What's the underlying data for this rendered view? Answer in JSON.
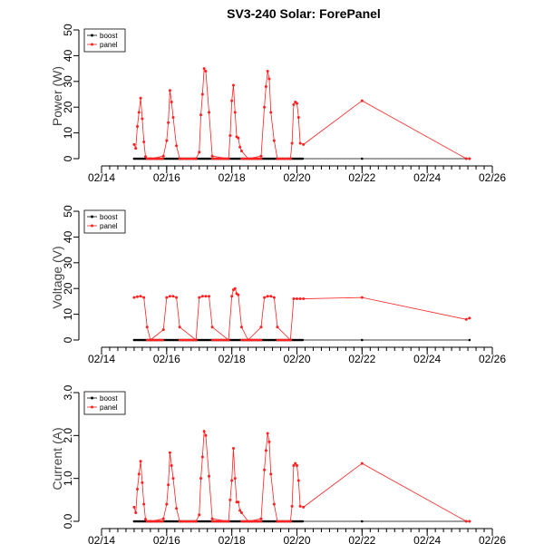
{
  "title": "SV3-240 Solar: ForePanel",
  "colors": {
    "boost": "#000000",
    "panel": "#ff2020"
  },
  "chart_data": [
    {
      "type": "line",
      "ylabel": "Power (W)",
      "xlabel": "",
      "ylim": [
        0,
        50
      ],
      "yticks": [
        "0",
        "10",
        "20",
        "30",
        "40",
        "50"
      ],
      "ytick_values": [
        0,
        10,
        20,
        30,
        40,
        50
      ],
      "xlim_days": [
        14,
        26
      ],
      "xtick_labels": [
        "02/14",
        "02/16",
        "02/18",
        "02/20",
        "02/22",
        "02/24",
        "02/26"
      ],
      "xtick_days": [
        14,
        16,
        18,
        20,
        22,
        24,
        26
      ],
      "legend": [
        "boost",
        "panel"
      ],
      "legend_position": "top-left",
      "series": [
        {
          "name": "boost",
          "x_days": [
            15.0,
            20.2,
            22.0,
            25.3
          ],
          "y": [
            0,
            0,
            0,
            0
          ],
          "dense": true
        },
        {
          "name": "panel",
          "x_days": [
            15.0,
            15.05,
            15.1,
            15.15,
            15.2,
            15.25,
            15.3,
            15.35,
            15.4,
            15.5,
            15.9,
            16.0,
            16.05,
            16.1,
            16.15,
            16.2,
            16.3,
            16.4,
            16.9,
            17.0,
            17.05,
            17.1,
            17.15,
            17.2,
            17.3,
            17.4,
            17.9,
            17.95,
            18.0,
            18.05,
            18.1,
            18.15,
            18.2,
            18.25,
            18.3,
            18.5,
            18.9,
            19.0,
            19.05,
            19.1,
            19.15,
            19.2,
            19.3,
            19.4,
            19.8,
            19.85,
            19.9,
            19.95,
            20.0,
            20.05,
            20.1,
            20.2,
            22.0,
            25.2,
            25.3
          ],
          "y": [
            5.5,
            4,
            12.5,
            18,
            23.5,
            15.5,
            6.5,
            0.8,
            0,
            0,
            1,
            7,
            14,
            26.5,
            22,
            16,
            5,
            0,
            0,
            2.5,
            17,
            25,
            35,
            34,
            18,
            1,
            0,
            9,
            22.5,
            28.5,
            18,
            8.5,
            8,
            4.5,
            3,
            0,
            1,
            20,
            28,
            34,
            31,
            18,
            7,
            0,
            0,
            6,
            21,
            22,
            21.5,
            16,
            6,
            5.5,
            22.5,
            0,
            0
          ]
        }
      ]
    },
    {
      "type": "line",
      "ylabel": "Voltage (V)",
      "xlabel": "",
      "ylim": [
        0,
        50
      ],
      "yticks": [
        "0",
        "10",
        "20",
        "30",
        "40",
        "50"
      ],
      "ytick_values": [
        0,
        10,
        20,
        30,
        40,
        50
      ],
      "xlim_days": [
        14,
        26
      ],
      "xtick_labels": [
        "02/14",
        "02/16",
        "02/18",
        "02/20",
        "02/22",
        "02/24",
        "02/26"
      ],
      "xtick_days": [
        14,
        16,
        18,
        20,
        22,
        24,
        26
      ],
      "legend": [
        "boost",
        "panel"
      ],
      "legend_position": "top-left",
      "series": [
        {
          "name": "boost",
          "x_days": [
            15.0,
            20.2,
            22.0,
            25.3
          ],
          "y": [
            0,
            0,
            0,
            0
          ],
          "dense": true
        },
        {
          "name": "panel",
          "x_days": [
            15.0,
            15.1,
            15.2,
            15.3,
            15.4,
            15.5,
            15.9,
            16.0,
            16.1,
            16.2,
            16.3,
            16.4,
            16.9,
            17.0,
            17.1,
            17.2,
            17.3,
            17.4,
            17.9,
            18.0,
            18.05,
            18.1,
            18.15,
            18.2,
            18.3,
            18.5,
            18.9,
            19.0,
            19.1,
            19.2,
            19.3,
            19.4,
            19.8,
            19.9,
            20.0,
            20.1,
            20.2,
            22.0,
            25.2,
            25.3
          ],
          "y": [
            16.5,
            16.8,
            17,
            16.5,
            5,
            0,
            4,
            16.5,
            17,
            17,
            16.5,
            5,
            0,
            16.5,
            17,
            17,
            17,
            5,
            0,
            17,
            19.5,
            20,
            18,
            17.5,
            5,
            0,
            5,
            16.5,
            17,
            17,
            16.5,
            5,
            0,
            16,
            16,
            16,
            16,
            16.5,
            8,
            8.5
          ]
        }
      ]
    },
    {
      "type": "line",
      "ylabel": "Current (A)",
      "xlabel": "",
      "ylim": [
        0,
        3
      ],
      "yticks": [
        "0.0",
        "1.0",
        "2.0",
        "3.0"
      ],
      "ytick_values": [
        0,
        1,
        2,
        3
      ],
      "xlim_days": [
        14,
        26
      ],
      "xtick_labels": [
        "02/14",
        "02/16",
        "02/18",
        "02/20",
        "02/22",
        "02/24",
        "02/26"
      ],
      "xtick_days": [
        14,
        16,
        18,
        20,
        22,
        24,
        26
      ],
      "legend": [
        "boost",
        "panel"
      ],
      "legend_position": "top-left",
      "series": [
        {
          "name": "boost",
          "x_days": [
            15.0,
            20.2,
            22.0,
            25.3
          ],
          "y": [
            0,
            0,
            0,
            0
          ],
          "dense": true
        },
        {
          "name": "panel",
          "x_days": [
            15.0,
            15.05,
            15.1,
            15.15,
            15.2,
            15.25,
            15.3,
            15.35,
            15.4,
            15.5,
            15.9,
            16.0,
            16.05,
            16.1,
            16.15,
            16.2,
            16.3,
            16.4,
            16.9,
            17.0,
            17.05,
            17.1,
            17.15,
            17.2,
            17.3,
            17.4,
            17.9,
            17.95,
            18.0,
            18.05,
            18.1,
            18.15,
            18.2,
            18.25,
            18.3,
            18.5,
            18.9,
            19.0,
            19.05,
            19.1,
            19.15,
            19.2,
            19.3,
            19.4,
            19.8,
            19.85,
            19.9,
            19.95,
            20.0,
            20.05,
            20.1,
            20.2,
            22.0,
            25.2,
            25.3
          ],
          "y": [
            0.33,
            0.2,
            0.75,
            1.1,
            1.4,
            0.9,
            0.4,
            0.05,
            0,
            0,
            0.06,
            0.4,
            0.85,
            1.6,
            1.3,
            1.0,
            0.3,
            0,
            0,
            0.15,
            1.0,
            1.5,
            2.1,
            2.0,
            1.05,
            0.06,
            0,
            0.5,
            0.95,
            1.7,
            1.0,
            0.45,
            0.45,
            0.25,
            0.2,
            0,
            0.06,
            1.2,
            1.65,
            2.05,
            1.85,
            1.1,
            0.4,
            0,
            0,
            0.35,
            1.3,
            1.35,
            1.3,
            0.95,
            0.35,
            0.33,
            1.35,
            0,
            0
          ]
        }
      ]
    }
  ]
}
